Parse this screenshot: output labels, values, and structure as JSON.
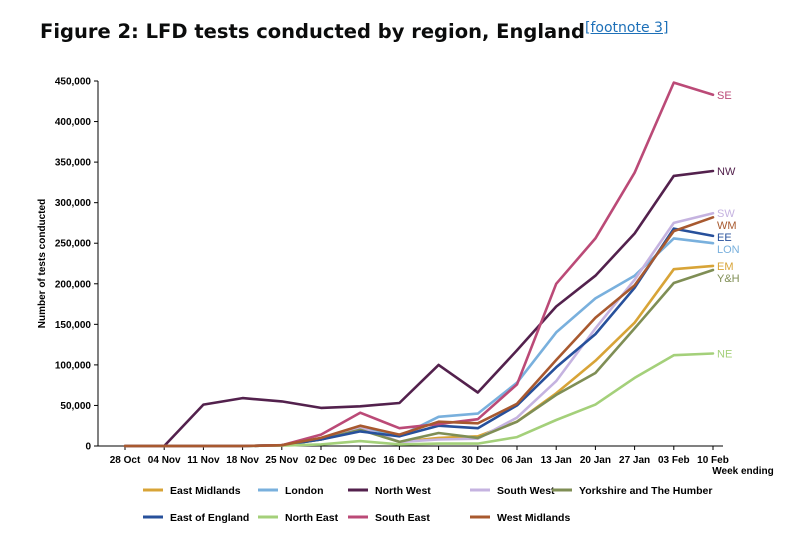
{
  "header": {
    "title": "Figure 2: LFD tests conducted by region, England",
    "footnote_link": "[footnote 3]"
  },
  "chart_data": {
    "type": "line",
    "title": "Figure 2: LFD tests conducted by region, England",
    "xlabel": "Week ending",
    "ylabel": "Number of tests conducted",
    "ylim": [
      0,
      450000
    ],
    "y_ticks": [
      0,
      50000,
      100000,
      150000,
      200000,
      250000,
      300000,
      350000,
      400000,
      450000
    ],
    "y_tick_labels": [
      "0",
      "50,000",
      "100,000",
      "150,000",
      "200,000",
      "250,000",
      "300,000",
      "350,000",
      "400,000",
      "450,000"
    ],
    "grid": false,
    "legend_position": "bottom",
    "categories": [
      "28 Oct",
      "04 Nov",
      "11 Nov",
      "18 Nov",
      "25 Nov",
      "02 Dec",
      "09 Dec",
      "16 Dec",
      "23 Dec",
      "30 Dec",
      "06 Jan",
      "13 Jan",
      "20 Jan",
      "27 Jan",
      "03 Feb",
      "10 Feb"
    ],
    "series": [
      {
        "name": "East Midlands",
        "end_label": "EM",
        "color": "#d8a437",
        "values": [
          0,
          0,
          0,
          0,
          1000,
          8000,
          22000,
          5000,
          10000,
          12000,
          30000,
          65000,
          105000,
          152000,
          218000,
          222000
        ]
      },
      {
        "name": "London",
        "end_label": "LON",
        "color": "#79b0dd",
        "values": [
          0,
          0,
          0,
          0,
          1000,
          9000,
          24000,
          12000,
          36000,
          40000,
          78000,
          140000,
          182000,
          210000,
          256000,
          250000
        ]
      },
      {
        "name": "North West",
        "end_label": "NW",
        "color": "#53214d",
        "values": [
          0,
          0,
          51000,
          59000,
          55000,
          47000,
          49000,
          53000,
          100000,
          66000,
          118000,
          172000,
          210000,
          262000,
          333000,
          339000
        ]
      },
      {
        "name": "South West",
        "end_label": "SW",
        "color": "#c5b3e0",
        "values": [
          0,
          0,
          0,
          0,
          1000,
          9000,
          23000,
          5000,
          8000,
          9000,
          35000,
          80000,
          145000,
          205000,
          275000,
          287000
        ]
      },
      {
        "name": "Yorkshire and The Humber",
        "end_label": "Y&H",
        "color": "#7f8e55",
        "values": [
          0,
          0,
          0,
          0,
          1000,
          8000,
          20000,
          5000,
          16000,
          10000,
          30000,
          63000,
          90000,
          145000,
          201000,
          217000
        ]
      },
      {
        "name": "East of England",
        "end_label": "EE",
        "color": "#27509b",
        "values": [
          0,
          0,
          0,
          0,
          1000,
          8000,
          18000,
          12000,
          25000,
          22000,
          50000,
          97000,
          138000,
          195000,
          268000,
          259000
        ]
      },
      {
        "name": "North East",
        "end_label": "NE",
        "color": "#a4d07a",
        "values": [
          0,
          0,
          0,
          0,
          500,
          2000,
          6000,
          2000,
          3000,
          3000,
          11000,
          32000,
          51000,
          84000,
          112000,
          114000
        ]
      },
      {
        "name": "South East",
        "end_label": "SE",
        "color": "#bb4a77",
        "values": [
          0,
          0,
          0,
          0,
          1000,
          14000,
          41000,
          22000,
          27000,
          33000,
          76000,
          200000,
          256000,
          337000,
          448000,
          433000
        ]
      },
      {
        "name": "West Midlands",
        "end_label": "WM",
        "color": "#a8592f",
        "values": [
          0,
          0,
          0,
          0,
          1000,
          10000,
          25000,
          14000,
          30000,
          28000,
          52000,
          106000,
          158000,
          198000,
          265000,
          282000
        ]
      }
    ]
  }
}
